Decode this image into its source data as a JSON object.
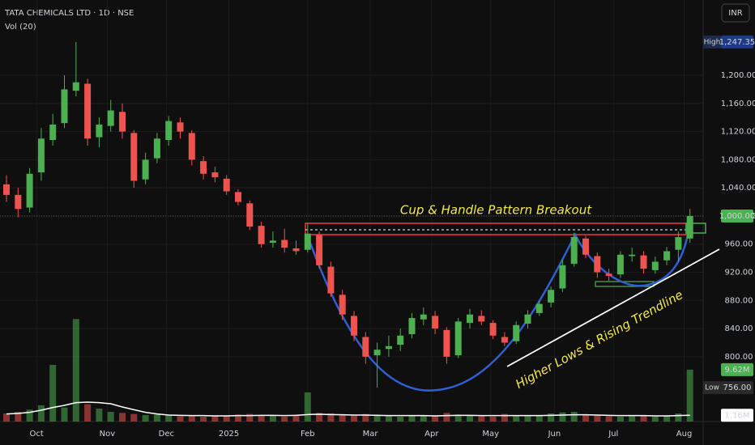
{
  "header": {
    "symbol": "TATA CHEMICALS LTD · 1D · NSE",
    "indicator": "Vol (20)",
    "currency": "INR"
  },
  "chart_data": {
    "type": "candlestick",
    "open": [
      1045,
      1030,
      1012,
      1062,
      1108,
      1132,
      1178,
      1188,
      1112,
      1128,
      1148,
      1118,
      1052,
      1082,
      1108,
      1133,
      1118,
      1078,
      1062,
      1053,
      1034,
      1018,
      986,
      962,
      966,
      954,
      952,
      973,
      928,
      888,
      858,
      828,
      802,
      811,
      817,
      832,
      853,
      858,
      838,
      802,
      848,
      858,
      848,
      828,
      822,
      847,
      862,
      877,
      897,
      932,
      968,
      943,
      918,
      917,
      943,
      944,
      923,
      937,
      952,
      968
    ],
    "high": [
      1058,
      1040,
      1068,
      1125,
      1145,
      1200,
      1247.35,
      1195,
      1140,
      1165,
      1160,
      1122,
      1090,
      1118,
      1142,
      1140,
      1122,
      1085,
      1070,
      1058,
      1038,
      1022,
      992,
      978,
      982,
      965,
      990,
      978,
      935,
      895,
      865,
      835,
      820,
      830,
      840,
      862,
      870,
      865,
      842,
      855,
      868,
      866,
      852,
      835,
      850,
      866,
      880,
      900,
      938,
      976,
      972,
      948,
      925,
      950,
      955,
      950,
      942,
      956,
      978,
      1010
    ],
    "low": [
      1020,
      998,
      1005,
      1050,
      1100,
      1125,
      1170,
      1100,
      1098,
      1120,
      1110,
      1040,
      1045,
      1075,
      1100,
      1110,
      1072,
      1052,
      1048,
      1030,
      1015,
      980,
      955,
      955,
      948,
      945,
      948,
      925,
      885,
      852,
      822,
      790,
      756,
      800,
      808,
      826,
      845,
      832,
      790,
      798,
      840,
      845,
      825,
      815,
      818,
      840,
      858,
      870,
      892,
      928,
      940,
      912,
      908,
      912,
      935,
      918,
      918,
      930,
      935,
      962
    ],
    "close": [
      1030,
      1010,
      1060,
      1110,
      1130,
      1180,
      1190,
      1110,
      1130,
      1150,
      1120,
      1050,
      1080,
      1110,
      1135,
      1120,
      1080,
      1060,
      1055,
      1035,
      1020,
      985,
      960,
      965,
      955,
      950,
      975,
      930,
      890,
      860,
      830,
      800,
      810,
      815,
      830,
      855,
      860,
      840,
      800,
      850,
      860,
      850,
      830,
      820,
      845,
      860,
      875,
      895,
      930,
      970,
      945,
      920,
      915,
      945,
      945,
      925,
      935,
      950,
      970,
      1000
    ],
    "close_label": "1,000.00",
    "volume": [
      1500000,
      1800000,
      2200000,
      3000000,
      10500000,
      2600000,
      19000000,
      3200000,
      2400000,
      1800000,
      1600000,
      1400000,
      1200000,
      1300000,
      1100000,
      1000000,
      1200000,
      900000,
      1100000,
      1000000,
      1300000,
      1400000,
      1200000,
      1100000,
      900000,
      1300000,
      5400000,
      1600000,
      1500000,
      1200000,
      1100000,
      1400000,
      1300000,
      1000000,
      900000,
      1100000,
      1200000,
      1000000,
      1600000,
      1300000,
      1100000,
      1000000,
      900000,
      1400000,
      1100000,
      1000000,
      1200000,
      1500000,
      1700000,
      1800000,
      1200000,
      1100000,
      1000000,
      900000,
      1000000,
      1100000,
      900000,
      1000000,
      1500000,
      9620000
    ],
    "volume_label": "9.62M",
    "volume_ma": [
      1400000,
      1500000,
      1700000,
      2100000,
      2600000,
      3000000,
      3500000,
      3600000,
      3500000,
      3300000,
      2700000,
      2200000,
      1700000,
      1400000,
      1200000,
      1150000,
      1100000,
      1100000,
      1050000,
      1050000,
      1100000,
      1100000,
      1150000,
      1150000,
      1100000,
      1150000,
      1300000,
      1350000,
      1300000,
      1250000,
      1200000,
      1200000,
      1150000,
      1100000,
      1100000,
      1100000,
      1100000,
      1050000,
      1100000,
      1150000,
      1150000,
      1100000,
      1100000,
      1100000,
      1100000,
      1100000,
      1100000,
      1150000,
      1200000,
      1250000,
      1250000,
      1200000,
      1150000,
      1100000,
      1100000,
      1100000,
      1050000,
      1050000,
      1100000,
      1160000
    ],
    "volume_ma_label": "1.16M",
    "volume_ylim": [
      0,
      15000000
    ],
    "high_label": "High",
    "high_value": {
      "value": 1247.35,
      "label": "1,247.35"
    },
    "low_label": "Low",
    "low_value": {
      "value": 756,
      "label": "756.00"
    },
    "up_color": "#4caf50",
    "down_color": "#ef5350",
    "xlim": [
      -0.56,
      60.14
    ],
    "xticks": [
      {
        "value": 2.6,
        "label": "Oct"
      },
      {
        "value": 8.7,
        "label": "Nov"
      },
      {
        "value": 13.8,
        "label": "Dec"
      },
      {
        "value": 19.2,
        "label": "2025"
      },
      {
        "value": 26,
        "label": "Feb"
      },
      {
        "value": 31.4,
        "label": "Mar"
      },
      {
        "value": 36.7,
        "label": "Apr"
      },
      {
        "value": 41.8,
        "label": "May"
      },
      {
        "value": 47.3,
        "label": "Jun"
      },
      {
        "value": 52.4,
        "label": "Jul"
      },
      {
        "value": 58.5,
        "label": "Aug"
      }
    ],
    "ylim": [
      709,
      1307
    ],
    "yticks": [
      {
        "value": 800,
        "label": "800.00"
      },
      {
        "value": 840,
        "label": "840.00"
      },
      {
        "value": 880,
        "label": "880.00"
      },
      {
        "value": 920,
        "label": "920.00"
      },
      {
        "value": 960,
        "label": "960.00"
      },
      {
        "value": 1000,
        "label": "1,000.00"
      },
      {
        "value": 1040,
        "label": "1,040.00"
      },
      {
        "value": 1080,
        "label": "1,080.00"
      },
      {
        "value": 1120,
        "label": "1,120.00"
      },
      {
        "value": 1160,
        "label": "1,160.00"
      },
      {
        "value": 1200,
        "label": "1,200.00"
      }
    ],
    "annotations": [
      "Cup & Handle Pattern Breakout",
      "Higher Lows & Rising Trendline"
    ]
  }
}
